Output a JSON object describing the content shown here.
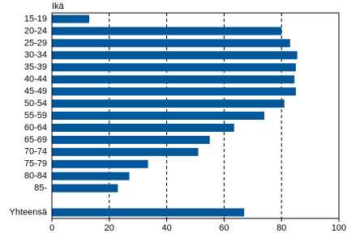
{
  "chart_data": {
    "type": "hbar",
    "y_label": "Ikä",
    "categories": [
      "15-19",
      "20-24",
      "25-29",
      "30-34",
      "35-39",
      "40-44",
      "45-49",
      "50-54",
      "55-59",
      "60-64",
      "65-69",
      "70-74",
      "75-79",
      "80-84",
      "85-",
      null,
      "Yhteensä"
    ],
    "values": [
      13,
      80,
      83,
      85.5,
      85,
      84.5,
      85,
      81,
      74,
      63.5,
      55,
      51,
      33.5,
      27,
      23,
      null,
      67
    ],
    "color": "#00589a",
    "xlim": [
      0,
      100
    ],
    "xticks": [
      0,
      20,
      40,
      60,
      80,
      100
    ],
    "grid": true
  }
}
